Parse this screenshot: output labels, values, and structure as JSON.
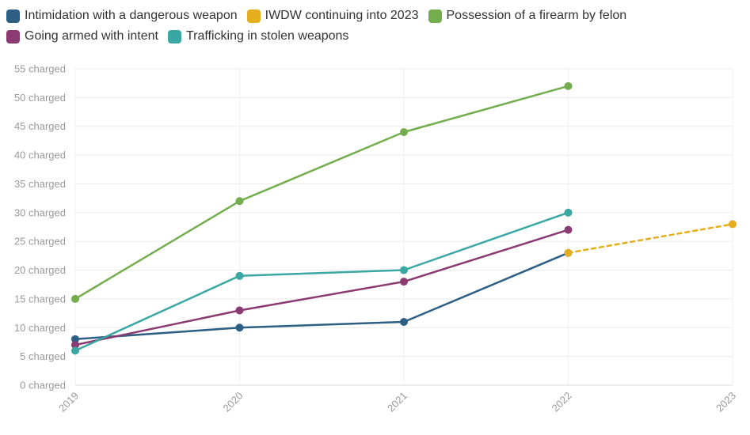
{
  "chart_data": {
    "type": "line",
    "x": [
      "2019",
      "2020",
      "2021",
      "2022",
      "2023"
    ],
    "y_ticks": [
      "0 charged",
      "5 charged",
      "10 charged",
      "15 charged",
      "20 charged",
      "25 charged",
      "30 charged",
      "35 charged",
      "40 charged",
      "45 charged",
      "50 charged",
      "55 charged"
    ],
    "ylim": [
      0,
      55
    ],
    "grid": true,
    "legend_position": "top-left",
    "series": [
      {
        "name": "Intimidation with a dangerous weapon",
        "color": "#2d5f85",
        "dashed": false,
        "values": [
          8,
          10,
          11,
          23,
          null
        ]
      },
      {
        "name": "IWDW continuing into 2023",
        "color": "#e4ae1d",
        "dashed": true,
        "values": [
          null,
          null,
          null,
          23,
          28
        ]
      },
      {
        "name": "Possession of a firearm by felon",
        "color": "#74ad4e",
        "dashed": false,
        "values": [
          15,
          32,
          44,
          52,
          null
        ]
      },
      {
        "name": "Going armed with intent",
        "color": "#8b3a72",
        "dashed": false,
        "values": [
          7,
          13,
          18,
          27,
          null
        ]
      },
      {
        "name": "Trafficking in stolen weapons",
        "color": "#3aa7a2",
        "dashed": false,
        "values": [
          6,
          19,
          20,
          30,
          null
        ]
      }
    ]
  }
}
